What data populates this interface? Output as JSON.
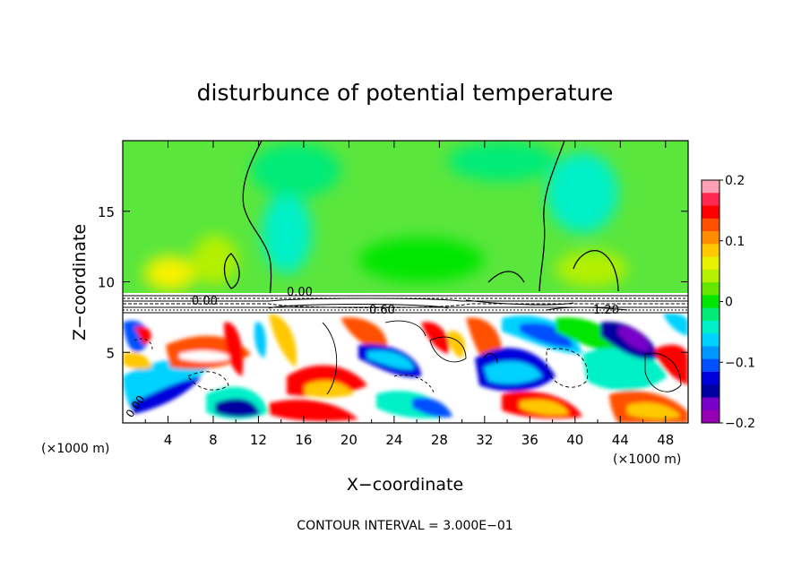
{
  "chart_data": {
    "type": "heatmap",
    "title": "disturbunce of potential temperature",
    "xlabel": "X−coordinate",
    "ylabel": "Z−coordinate",
    "x_unit_left": "(×1000 m)",
    "x_unit_right": "(×1000 m)",
    "x_ticks": [
      "4",
      "8",
      "12",
      "16",
      "20",
      "24",
      "28",
      "32",
      "36",
      "40",
      "44",
      "48"
    ],
    "x_tick_values": [
      4,
      8,
      12,
      16,
      20,
      24,
      28,
      32,
      36,
      40,
      44,
      48
    ],
    "y_ticks": [
      "5",
      "10",
      "15"
    ],
    "y_tick_values": [
      5,
      10,
      15
    ],
    "xlim": [
      0,
      50
    ],
    "ylim": [
      0,
      20
    ],
    "colorbar": {
      "range": [
        -0.2,
        0.2
      ],
      "tick_labels": [
        "0.2",
        "0.1",
        "0",
        "−0.1",
        "−0.2"
      ],
      "tick_values": [
        0.2,
        0.1,
        0,
        -0.1,
        -0.2
      ],
      "colors": [
        "#ffa0b4",
        "#ff2850",
        "#ff0000",
        "#ff5000",
        "#ff8c00",
        "#ffc800",
        "#e6f000",
        "#b4f000",
        "#64e600",
        "#00e600",
        "#00eb78",
        "#00f0c8",
        "#00d2ff",
        "#0096ff",
        "#0050ff",
        "#0000dc",
        "#0000a0",
        "#7800c8",
        "#9600b4"
      ]
    },
    "contour_labels": [
      "0.00",
      "0.00",
      "0.60",
      "1.20",
      "0.00"
    ],
    "footer": "CONTOUR INTERVAL = 3.000E−01"
  }
}
